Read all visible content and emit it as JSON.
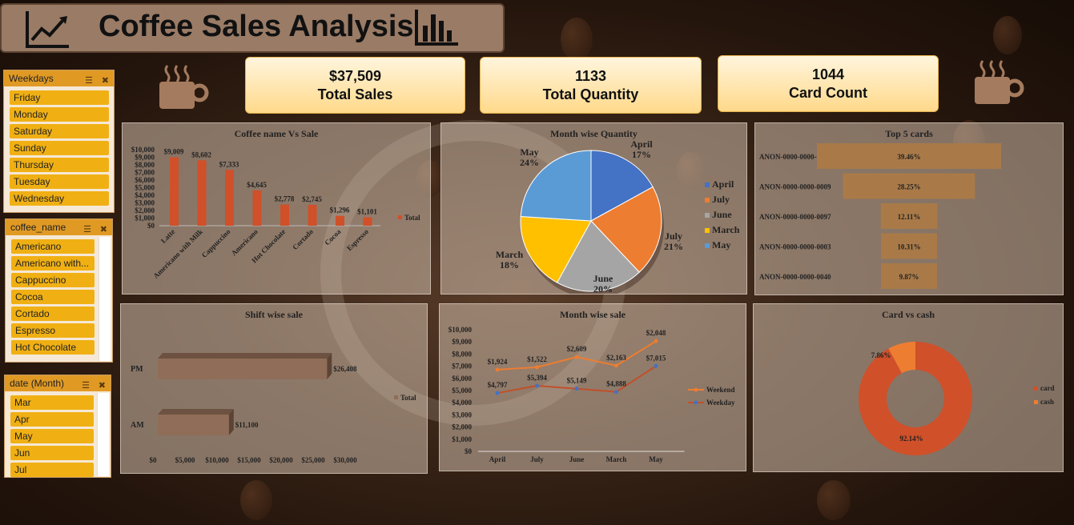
{
  "title": "Coffee Sales Analysis",
  "kpis": [
    {
      "value": "$37,509",
      "label": "Total Sales"
    },
    {
      "value": "1133",
      "label": "Total Quantity"
    },
    {
      "value": "1044",
      "label": "Card Count"
    }
  ],
  "slicers": {
    "weekdays": {
      "header": "Weekdays",
      "items": [
        "Friday",
        "Monday",
        "Saturday",
        "Sunday",
        "Thursday",
        "Tuesday",
        "Wednesday"
      ]
    },
    "coffee": {
      "header": "coffee_name",
      "items": [
        "Americano",
        "Americano with...",
        "Cappuccino",
        "Cocoa",
        "Cortado",
        "Espresso",
        "Hot Chocolate"
      ]
    },
    "month": {
      "header": "date (Month)",
      "items": [
        "Mar",
        "Apr",
        "May",
        "Jun",
        "Jul"
      ]
    }
  },
  "colors": {
    "accent": "#f0b014",
    "bar": "#d0502a",
    "panel": "#cdb9a6",
    "orange": "#ed7d31",
    "blue": "#4472c4",
    "gray": "#a5a5a5",
    "gold": "#ffc000",
    "lightblue": "#5b9bd5"
  },
  "chart_data": [
    {
      "id": "coffee_sale",
      "type": "bar",
      "title": "Coffee name Vs Sale",
      "categories": [
        "Latte",
        "Americano with Milk",
        "Cappuccino",
        "Americano",
        "Hot Chocolate",
        "Cortado",
        "Cocoa",
        "Espresso"
      ],
      "values": [
        9009,
        8602,
        7333,
        4645,
        2778,
        2745,
        1296,
        1101
      ],
      "value_labels": [
        "$9,009",
        "$8,602",
        "$7,333",
        "$4,645",
        "$2,778",
        "$2,745",
        "$1,296",
        "$1,101"
      ],
      "yticks": [
        "$10,000",
        "$9,000",
        "$8,000",
        "$7,000",
        "$6,000",
        "$5,000",
        "$4,000",
        "$3,000",
        "$2,000",
        "$1,000",
        "$0"
      ],
      "ylim": [
        0,
        10000
      ],
      "legend": "Total"
    },
    {
      "id": "month_qty",
      "type": "pie",
      "title": "Month wise Quantity",
      "labels": [
        "April",
        "July",
        "June",
        "March",
        "May"
      ],
      "values": [
        17,
        21,
        20,
        18,
        24
      ],
      "value_labels": [
        "17%",
        "21%",
        "20%",
        "18%",
        "24%"
      ],
      "colors": [
        "#4472c4",
        "#ed7d31",
        "#a5a5a5",
        "#ffc000",
        "#5b9bd5"
      ],
      "legend": "right"
    },
    {
      "id": "top_cards",
      "type": "bar",
      "title": "Top 5 cards",
      "categories": [
        "ANON-0000-0000-0012",
        "ANON-0000-0000-0009",
        "ANON-0000-0000-0097",
        "ANON-0000-0000-0003",
        "ANON-0000-0000-0040"
      ],
      "values": [
        39.46,
        28.25,
        12.11,
        10.31,
        9.87
      ],
      "value_labels": [
        "39.46%",
        "28.25%",
        "12.11%",
        "10.31%",
        "9.87%"
      ]
    },
    {
      "id": "shift_sale",
      "type": "bar",
      "title": "Shift wise sale",
      "categories": [
        "PM",
        "AM"
      ],
      "values": [
        26408,
        11100
      ],
      "value_labels": [
        "$26,408",
        "$11,100"
      ],
      "xticks": [
        "$0",
        "$5,000",
        "$10,000",
        "$15,000",
        "$20,000",
        "$25,000",
        "$30,000"
      ],
      "xlim": [
        0,
        30000
      ],
      "legend": "Total"
    },
    {
      "id": "month_sale",
      "type": "line",
      "title": "Month wise sale",
      "categories": [
        "April",
        "July",
        "June",
        "March",
        "May"
      ],
      "series": [
        {
          "name": "Weekend",
          "values": [
            1924,
            1522,
            2609,
            2163,
            2048
          ],
          "labels": [
            "$1,924",
            "$1,522",
            "$2,609",
            "$2,163",
            "$2,048"
          ]
        },
        {
          "name": "Weekday",
          "values": [
            4797,
            5394,
            5149,
            4888,
            7015
          ],
          "labels": [
            "$4,797",
            "$5,394",
            "$5,149",
            "$4,888",
            "$7,015"
          ]
        }
      ],
      "yticks": [
        "$10,000",
        "$9,000",
        "$8,000",
        "$7,000",
        "$6,000",
        "$5,000",
        "$4,000",
        "$3,000",
        "$2,000",
        "$1,000",
        "$0"
      ],
      "ylim": [
        0,
        10000
      ]
    },
    {
      "id": "card_cash",
      "type": "pie",
      "title": "Card vs cash",
      "labels": [
        "card",
        "cash"
      ],
      "values": [
        92.14,
        7.86
      ],
      "value_labels": [
        "92.14%",
        "7.86%"
      ],
      "colors": [
        "#d0502a",
        "#ed7d31"
      ]
    }
  ]
}
